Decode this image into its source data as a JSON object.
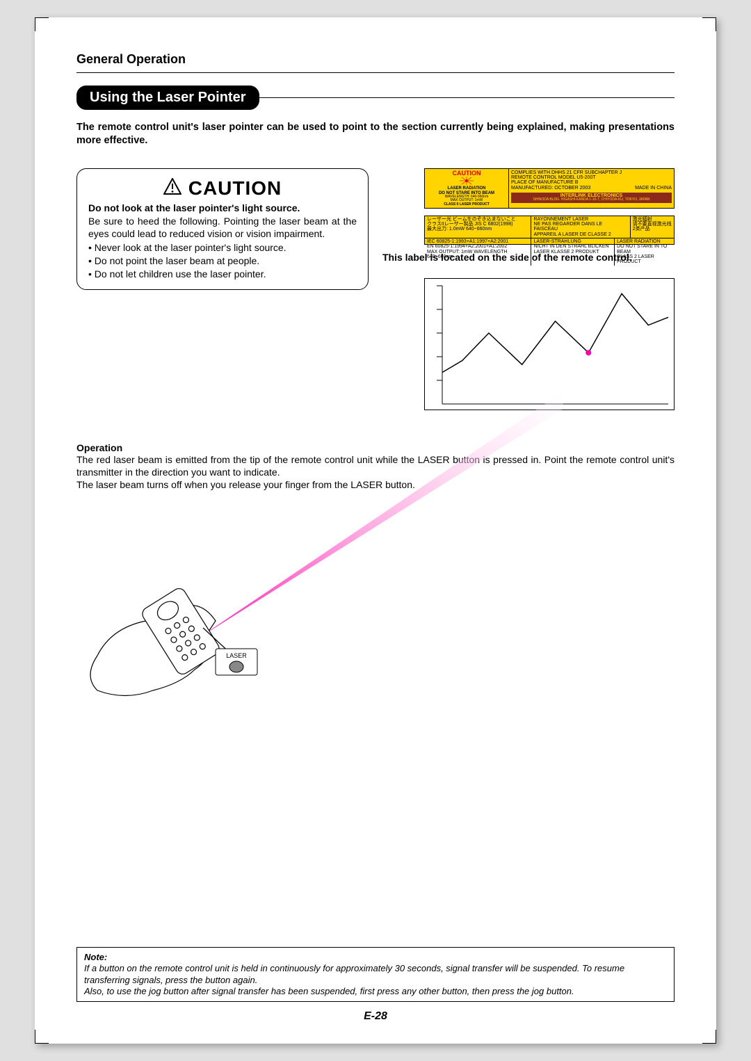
{
  "header": {
    "title": "General Operation"
  },
  "section": {
    "title": "Using the Laser Pointer"
  },
  "intro": "The remote control unit's laser pointer can be used to point to the section currently being explained, making presentations more effective.",
  "caution": {
    "heading": "CAUTION",
    "subheading": "Do not look at the laser pointer's light source.",
    "body": "Be sure to heed the following. Pointing the laser beam at the eyes could lead to reduced vision or vision impairment.",
    "bullets": [
      "Never look at the laser pointer's light source.",
      "Do not point the laser beam at people.",
      "Do not let children use the laser pointer."
    ]
  },
  "label_note": "This label is located on the side of the remote control.",
  "warn1": {
    "caution": "CAUTION",
    "line1": "LASER RADIATION",
    "line2": "DO NOT STARE INTO BEAM",
    "line3": "WAVELENGTH: 640-660nm",
    "line4": "MAX OUTPUT: 1mW",
    "line5": "CLASS II LASER PRODUCT",
    "r1": "COMPLIES WITH DHHS 21 CFR SUBCHAPTER J",
    "r2": "REMOTE CONTROL MODEL U5-200T",
    "r3": "PLACE OF MANUFACTURE B",
    "r4": "MANUFACTURED: OCTOBER 2003",
    "r5": "MADE IN CHINA",
    "bottom1": "INTERLINK ELECTRONICS",
    "bottom2": "SHINODA BLDG. HIGASHI-KANDA 1-10-7, CHIYODA-KU, TOKYO, JAPAN"
  },
  "warn2": {
    "a1": "レーザー光 ビームをのぞき込まないこと",
    "a2": "クラスIIレーザー製品 JIS C 6802(1998)",
    "a3": "最大出力: 1.0mW    640~660nm",
    "b1": "RAYONNEMENT LASER",
    "b2": "NE PAS REGARDER DANS LE FAISCEAU",
    "b3": "APPAREIL A LASER DE CLASSE 2",
    "c1": "激光辐射",
    "c2": "请不要直视激光线",
    "c3": "2类产品",
    "d1": "IEC 60825-1:1993+A1:1997+A2:2001",
    "d2": "EN 60825-1:1994+A2:2001+A1:2002",
    "d3": "MAX OUTPUT: 1mW WAVELENGTH 640~660nm",
    "e1": "LASER-STRAHLUNG",
    "e2": "NICHT IN DEN STRAHL BLICKEN",
    "e3": "LASER KLASSE 2 PRODUKT",
    "f1": "LASER RADIATION",
    "f2": "DO NOT STARE IN TO BEAM",
    "f3": "CLASS 2 LASER PRODUCT"
  },
  "operation": {
    "heading": "Operation",
    "body": "The red laser beam is emitted from the tip of the remote control unit while the LASER button is pressed in. Point the remote control unit's transmitter in the direction you want to indicate.\nThe laser beam turns off when you release your finger from the LASER button."
  },
  "chart": {
    "points": [
      [
        0,
        40
      ],
      [
        30,
        55
      ],
      [
        70,
        90
      ],
      [
        120,
        50
      ],
      [
        170,
        105
      ],
      [
        220,
        65
      ],
      [
        270,
        140
      ],
      [
        310,
        100
      ],
      [
        340,
        110
      ]
    ],
    "yticks": [
      30,
      60,
      90,
      120,
      150
    ],
    "line_color": "#000000",
    "bg": "#ffffff",
    "dot_color": "#ff00aa",
    "dot_pos": [
      220,
      65
    ]
  },
  "laser": {
    "beam_color_start": "#ff1fb0",
    "beam_color_end": "#ffffff",
    "label": "LASER"
  },
  "note": {
    "label": "Note:",
    "line1": "If a button on the remote control unit is held in continuously for approximately 30 seconds, signal transfer will be suspended. To resume transferring signals, press the button again.",
    "line2": "Also, to use the jog button after signal transfer has been suspended, first press any other button, then press the jog button."
  },
  "page_number": "E-28"
}
